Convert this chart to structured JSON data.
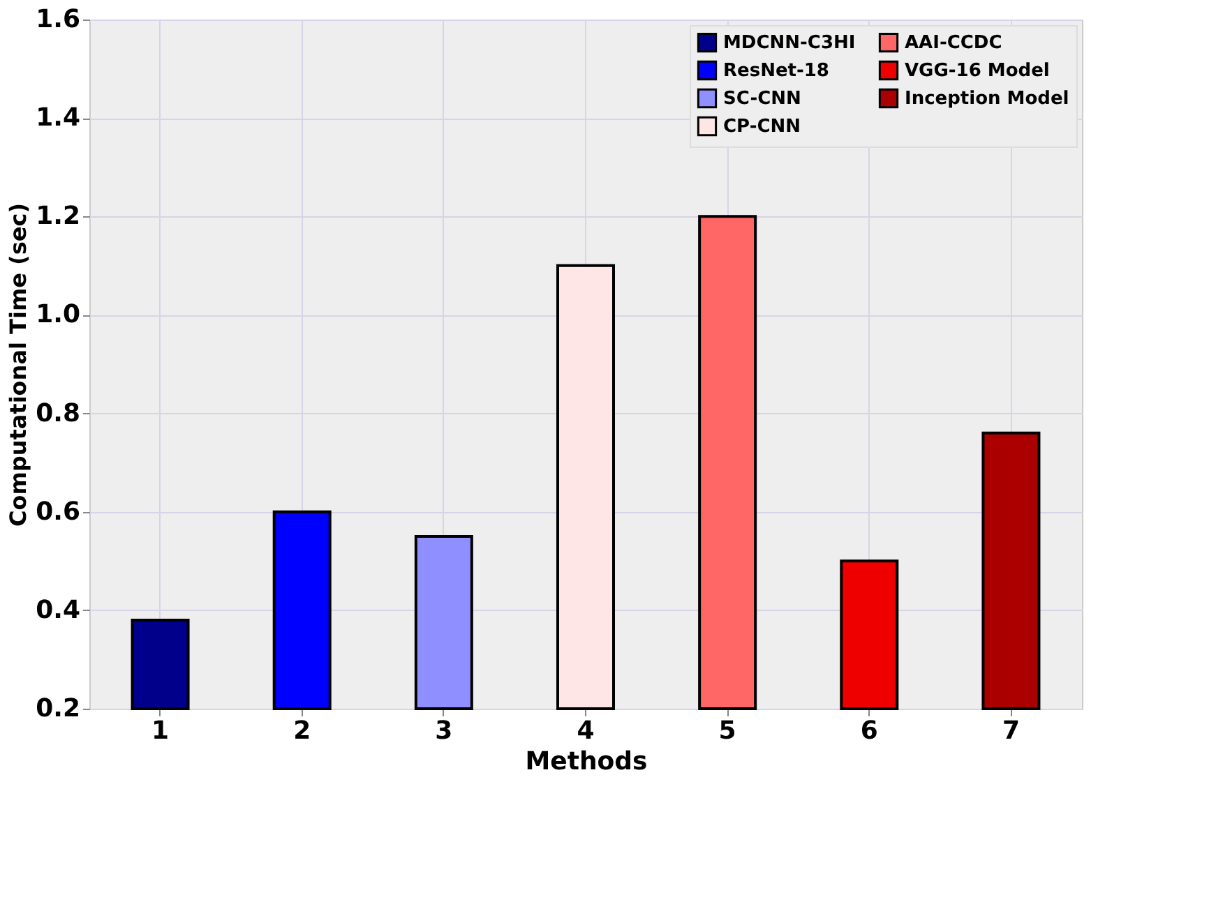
{
  "chart_data": {
    "type": "bar",
    "xlabel": "Methods",
    "ylabel": "Computational Time (sec)",
    "categories": [
      "1",
      "2",
      "3",
      "4",
      "5",
      "6",
      "7"
    ],
    "series": [
      {
        "name": "MDCNN-C3HI",
        "color": "#00008b",
        "values": [
          0.38,
          null,
          null,
          null,
          null,
          null,
          null
        ]
      },
      {
        "name": "ResNet-18",
        "color": "#0000ff",
        "values": [
          null,
          0.6,
          null,
          null,
          null,
          null,
          null
        ]
      },
      {
        "name": "SC-CNN",
        "color": "#8f8fff",
        "values": [
          null,
          null,
          0.55,
          null,
          null,
          null,
          null
        ]
      },
      {
        "name": "CP-CNN",
        "color": "#ffe6e6",
        "values": [
          null,
          null,
          null,
          1.1,
          null,
          null,
          null
        ]
      },
      {
        "name": "AAI-CCDC",
        "color": "#ff6666",
        "values": [
          null,
          null,
          null,
          null,
          1.2,
          null,
          null
        ]
      },
      {
        "name": "VGG-16 Model",
        "color": "#ee0000",
        "values": [
          null,
          null,
          null,
          null,
          null,
          0.5,
          null
        ]
      },
      {
        "name": "Inception Model",
        "color": "#aa0000",
        "values": [
          null,
          null,
          null,
          null,
          null,
          null,
          0.76
        ]
      }
    ],
    "ylim": [
      0.2,
      1.6
    ],
    "yticks": [
      0.2,
      0.4,
      0.6,
      0.8,
      {
        "value": 1,
        "label": "1.0"
      },
      1.2,
      1.4,
      1.6
    ],
    "grid": true,
    "legend": "top right"
  }
}
